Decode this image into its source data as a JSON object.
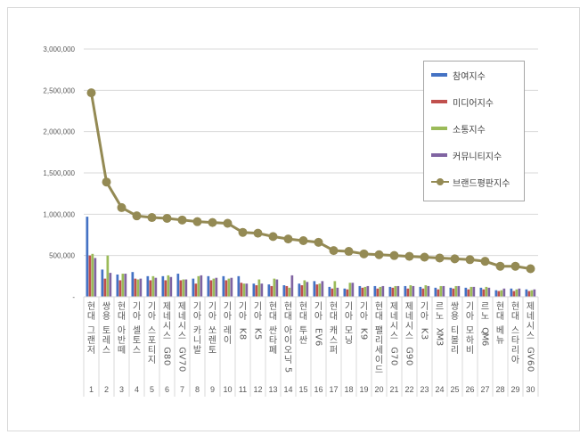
{
  "chart_data": {
    "type": "bar+line",
    "title": "",
    "xlabel": "",
    "ylabel": "",
    "ylim": [
      0,
      3000000
    ],
    "yticks": [
      {
        "value": 0,
        "label": "-"
      },
      {
        "value": 500000,
        "label": "500,000"
      },
      {
        "value": 1000000,
        "label": "1,000,000"
      },
      {
        "value": 1500000,
        "label": "1,500,000"
      },
      {
        "value": 2000000,
        "label": "2,000,000"
      },
      {
        "value": 2500000,
        "label": "2,500,000"
      },
      {
        "value": 3000000,
        "label": "3,000,000"
      }
    ],
    "grid": true,
    "legend_position": "upper-right-inside",
    "categories": [
      {
        "rank": "1",
        "name": "현대 그랜저"
      },
      {
        "rank": "2",
        "name": "쌍용 토레스"
      },
      {
        "rank": "3",
        "name": "현대 아반떼"
      },
      {
        "rank": "4",
        "name": "기아 셀토스"
      },
      {
        "rank": "5",
        "name": "기아 스포티지"
      },
      {
        "rank": "6",
        "name": "제네시스 G80"
      },
      {
        "rank": "7",
        "name": "제네시스 GV70"
      },
      {
        "rank": "8",
        "name": "기아 카니발"
      },
      {
        "rank": "9",
        "name": "기아 쏘렌토"
      },
      {
        "rank": "10",
        "name": "기아 레이"
      },
      {
        "rank": "11",
        "name": "기아 K8"
      },
      {
        "rank": "12",
        "name": "기아 K5"
      },
      {
        "rank": "13",
        "name": "현대 싼타페"
      },
      {
        "rank": "14",
        "name": "현대 아이오닉5"
      },
      {
        "rank": "15",
        "name": "현대 투싼"
      },
      {
        "rank": "16",
        "name": "기아 EV6"
      },
      {
        "rank": "17",
        "name": "현대 캐스퍼"
      },
      {
        "rank": "18",
        "name": "기아 모닝"
      },
      {
        "rank": "19",
        "name": "기아 K9"
      },
      {
        "rank": "20",
        "name": "현대 팰리세이드"
      },
      {
        "rank": "21",
        "name": "제네시스 G70"
      },
      {
        "rank": "22",
        "name": "제네시스 G90"
      },
      {
        "rank": "23",
        "name": "기아 K3"
      },
      {
        "rank": "24",
        "name": "르노 XM3"
      },
      {
        "rank": "25",
        "name": "쌍용 티볼리"
      },
      {
        "rank": "26",
        "name": "기아 모하비"
      },
      {
        "rank": "27",
        "name": "르노 QM6"
      },
      {
        "rank": "28",
        "name": "현대 베뉴"
      },
      {
        "rank": "29",
        "name": "현대 스타리아"
      },
      {
        "rank": "30",
        "name": "제네시스 GV60"
      }
    ],
    "series": [
      {
        "name": "참여지수",
        "type": "bar",
        "color": "#4472c4",
        "values": [
          970000,
          330000,
          270000,
          300000,
          250000,
          250000,
          280000,
          220000,
          250000,
          250000,
          250000,
          160000,
          150000,
          140000,
          160000,
          190000,
          120000,
          100000,
          130000,
          130000,
          120000,
          130000,
          120000,
          110000,
          110000,
          110000,
          110000,
          80000,
          100000,
          90000
        ]
      },
      {
        "name": "미디어지수",
        "type": "bar",
        "color": "#c0504d",
        "values": [
          500000,
          220000,
          200000,
          220000,
          200000,
          200000,
          200000,
          160000,
          200000,
          200000,
          170000,
          140000,
          130000,
          130000,
          140000,
          150000,
          100000,
          90000,
          110000,
          100000,
          110000,
          100000,
          100000,
          90000,
          100000,
          90000,
          90000,
          70000,
          70000,
          70000
        ]
      },
      {
        "name": "소통지수",
        "type": "bar",
        "color": "#9bbb59",
        "values": [
          520000,
          500000,
          280000,
          210000,
          250000,
          260000,
          210000,
          250000,
          220000,
          220000,
          160000,
          210000,
          220000,
          110000,
          200000,
          160000,
          190000,
          170000,
          120000,
          120000,
          130000,
          140000,
          140000,
          130000,
          130000,
          120000,
          120000,
          80000,
          90000,
          80000
        ]
      },
      {
        "name": "커뮤니티지수",
        "type": "bar",
        "color": "#8064a2",
        "values": [
          470000,
          290000,
          280000,
          220000,
          230000,
          240000,
          210000,
          260000,
          230000,
          230000,
          160000,
          160000,
          210000,
          260000,
          180000,
          190000,
          110000,
          170000,
          130000,
          130000,
          130000,
          130000,
          130000,
          130000,
          130000,
          120000,
          110000,
          100000,
          100000,
          90000
        ]
      },
      {
        "name": "브랜드평판지수",
        "type": "line",
        "color": "#948a54",
        "values": [
          2470000,
          1390000,
          1080000,
          980000,
          960000,
          950000,
          930000,
          910000,
          900000,
          890000,
          780000,
          770000,
          730000,
          700000,
          680000,
          660000,
          560000,
          550000,
          520000,
          510000,
          500000,
          490000,
          480000,
          470000,
          460000,
          450000,
          430000,
          370000,
          370000,
          340000
        ]
      }
    ]
  },
  "legend": {
    "items": [
      {
        "label": "참여지수",
        "color": "#4472c4",
        "kind": "bar"
      },
      {
        "label": "미디어지수",
        "color": "#c0504d",
        "kind": "bar"
      },
      {
        "label": "소통지수",
        "color": "#9bbb59",
        "kind": "bar"
      },
      {
        "label": "커뮤니티지수",
        "color": "#8064a2",
        "kind": "bar"
      },
      {
        "label": "브랜드평판지수",
        "color": "#948a54",
        "kind": "line"
      }
    ]
  }
}
